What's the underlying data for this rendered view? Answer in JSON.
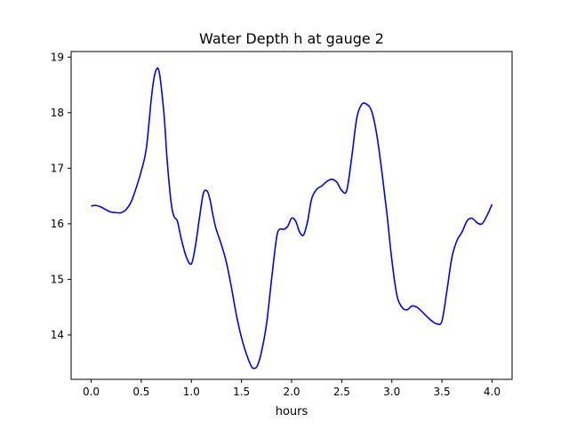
{
  "chart_data": {
    "type": "line",
    "title": "Water Depth h at gauge 2",
    "xlabel": "hours",
    "ylabel": "",
    "xlim": [
      -0.2,
      4.2
    ],
    "ylim": [
      13.2,
      19.1
    ],
    "xticks": [
      "0.0",
      "0.5",
      "1.0",
      "1.5",
      "2.0",
      "2.5",
      "3.0",
      "3.5",
      "4.0"
    ],
    "yticks": [
      "14",
      "15",
      "16",
      "17",
      "18",
      "19"
    ],
    "grid": false,
    "legend": "none",
    "series": [
      {
        "color": "#0000ff",
        "x": [
          0.0,
          0.05,
          0.1,
          0.15,
          0.2,
          0.25,
          0.3,
          0.35,
          0.4,
          0.45,
          0.5,
          0.55,
          0.6,
          0.63,
          0.66,
          0.68,
          0.7,
          0.73,
          0.76,
          0.8,
          0.83,
          0.86,
          0.9,
          0.95,
          1.0,
          1.04,
          1.08,
          1.12,
          1.16,
          1.19,
          1.21,
          1.24,
          1.27,
          1.3,
          1.35,
          1.4,
          1.45,
          1.5,
          1.55,
          1.6,
          1.63,
          1.66,
          1.7,
          1.75,
          1.8,
          1.85,
          1.88,
          1.92,
          1.96,
          2.0,
          2.04,
          2.08,
          2.12,
          2.16,
          2.2,
          2.25,
          2.3,
          2.35,
          2.4,
          2.45,
          2.5,
          2.55,
          2.6,
          2.65,
          2.7,
          2.75,
          2.8,
          2.85,
          2.9,
          2.95,
          3.0,
          3.05,
          3.1,
          3.15,
          3.2,
          3.25,
          3.3,
          3.35,
          3.4,
          3.45,
          3.5,
          3.55,
          3.6,
          3.65,
          3.7,
          3.75,
          3.8,
          3.85,
          3.9,
          3.95,
          4.0
        ],
        "y": [
          16.32,
          16.33,
          16.3,
          16.25,
          16.21,
          16.2,
          16.2,
          16.26,
          16.4,
          16.65,
          16.95,
          17.35,
          18.25,
          18.65,
          18.8,
          18.72,
          18.45,
          17.9,
          17.1,
          16.35,
          16.12,
          16.05,
          15.72,
          15.4,
          15.28,
          15.6,
          16.1,
          16.55,
          16.58,
          16.4,
          16.2,
          15.95,
          15.78,
          15.62,
          15.3,
          14.85,
          14.35,
          13.95,
          13.65,
          13.43,
          13.4,
          13.45,
          13.7,
          14.2,
          15.0,
          15.75,
          15.9,
          15.9,
          15.95,
          16.1,
          16.05,
          15.85,
          15.8,
          16.05,
          16.45,
          16.62,
          16.68,
          16.76,
          16.8,
          16.75,
          16.6,
          16.6,
          17.2,
          17.9,
          18.15,
          18.15,
          18.02,
          17.6,
          16.95,
          16.2,
          15.35,
          14.72,
          14.5,
          14.45,
          14.52,
          14.5,
          14.42,
          14.33,
          14.25,
          14.2,
          14.25,
          14.8,
          15.4,
          15.7,
          15.85,
          16.05,
          16.1,
          16.02,
          16.0,
          16.15,
          16.35
        ]
      }
    ]
  }
}
